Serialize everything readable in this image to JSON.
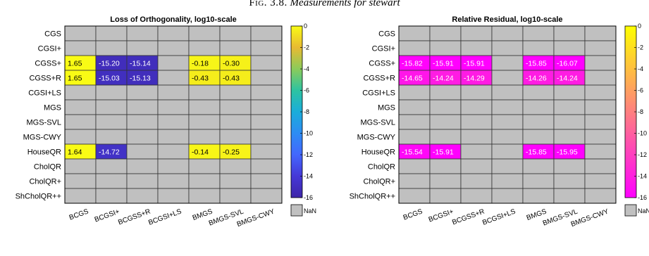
{
  "caption": {
    "label": "Fig. 3.8.",
    "text": "Measurements for stewart"
  },
  "nan_label": "NaN",
  "chart_data": [
    {
      "type": "heatmap",
      "title": "Loss of Orthogonality, log10-scale",
      "rows": [
        "CGS",
        "CGSI+",
        "CGSS+",
        "CGSS+R",
        "CGSI+LS",
        "MGS",
        "MGS-SVL",
        "MGS-CWY",
        "HouseQR",
        "CholQR",
        "CholQR+",
        "ShCholQR++"
      ],
      "columns": [
        "BCGS",
        "BCGSI+",
        "BCGSS+R",
        "BCGSI+LS",
        "BMGS",
        "BMGS-SVL",
        "BMGS-CWY"
      ],
      "values": [
        [
          null,
          null,
          null,
          null,
          null,
          null,
          null
        ],
        [
          null,
          null,
          null,
          null,
          null,
          null,
          null
        ],
        [
          1.65,
          -15.2,
          -15.14,
          null,
          -0.18,
          -0.3,
          null
        ],
        [
          1.65,
          -15.03,
          -15.13,
          null,
          -0.43,
          -0.43,
          null
        ],
        [
          null,
          null,
          null,
          null,
          null,
          null,
          null
        ],
        [
          null,
          null,
          null,
          null,
          null,
          null,
          null
        ],
        [
          null,
          null,
          null,
          null,
          null,
          null,
          null
        ],
        [
          null,
          null,
          null,
          null,
          null,
          null,
          null
        ],
        [
          1.64,
          -14.72,
          null,
          null,
          -0.14,
          -0.25,
          null
        ],
        [
          null,
          null,
          null,
          null,
          null,
          null,
          null
        ],
        [
          null,
          null,
          null,
          null,
          null,
          null,
          null
        ],
        [
          null,
          null,
          null,
          null,
          null,
          null,
          null
        ]
      ],
      "labels": [
        [
          null,
          null,
          null,
          null,
          null,
          null,
          null
        ],
        [
          null,
          null,
          null,
          null,
          null,
          null,
          null
        ],
        [
          "1.65",
          "-15.20",
          "-15.14",
          null,
          "-0.18",
          "-0.30",
          null
        ],
        [
          "1.65",
          "-15.03",
          "-15.13",
          null,
          "-0.43",
          "-0.43",
          null
        ],
        [
          null,
          null,
          null,
          null,
          null,
          null,
          null
        ],
        [
          null,
          null,
          null,
          null,
          null,
          null,
          null
        ],
        [
          null,
          null,
          null,
          null,
          null,
          null,
          null
        ],
        [
          null,
          null,
          null,
          null,
          null,
          null,
          null
        ],
        [
          "1.64",
          "-14.72",
          null,
          null,
          "-0.14",
          "-0.25",
          null
        ],
        [
          null,
          null,
          null,
          null,
          null,
          null,
          null
        ],
        [
          null,
          null,
          null,
          null,
          null,
          null,
          null
        ],
        [
          null,
          null,
          null,
          null,
          null,
          null,
          null
        ]
      ],
      "colorbar": {
        "range": [
          -16,
          0
        ],
        "ticks": [
          "0",
          "-2",
          "-4",
          "-6",
          "-8",
          "-10",
          "-12",
          "-14",
          "-16"
        ],
        "colormap": "parula",
        "nan_color": "#c0c0c0"
      }
    },
    {
      "type": "heatmap",
      "title": "Relative Residual, log10-scale",
      "rows": [
        "CGS",
        "CGSI+",
        "CGSS+",
        "CGSS+R",
        "CGSI+LS",
        "MGS",
        "MGS-SVL",
        "MGS-CWY",
        "HouseQR",
        "CholQR",
        "CholQR+",
        "ShCholQR++"
      ],
      "columns": [
        "BCGS",
        "BCGSI+",
        "BCGSS+R",
        "BCGSI+LS",
        "BMGS",
        "BMGS-SVL",
        "BMGS-CWY"
      ],
      "values": [
        [
          null,
          null,
          null,
          null,
          null,
          null,
          null
        ],
        [
          null,
          null,
          null,
          null,
          null,
          null,
          null
        ],
        [
          -15.82,
          -15.91,
          -15.91,
          null,
          -15.85,
          -16.07,
          null
        ],
        [
          -14.65,
          -14.24,
          -14.29,
          null,
          -14.26,
          -14.24,
          null
        ],
        [
          null,
          null,
          null,
          null,
          null,
          null,
          null
        ],
        [
          null,
          null,
          null,
          null,
          null,
          null,
          null
        ],
        [
          null,
          null,
          null,
          null,
          null,
          null,
          null
        ],
        [
          null,
          null,
          null,
          null,
          null,
          null,
          null
        ],
        [
          -15.54,
          -15.91,
          null,
          null,
          -15.85,
          -15.95,
          null
        ],
        [
          null,
          null,
          null,
          null,
          null,
          null,
          null
        ],
        [
          null,
          null,
          null,
          null,
          null,
          null,
          null
        ],
        [
          null,
          null,
          null,
          null,
          null,
          null,
          null
        ]
      ],
      "labels": [
        [
          null,
          null,
          null,
          null,
          null,
          null,
          null
        ],
        [
          null,
          null,
          null,
          null,
          null,
          null,
          null
        ],
        [
          "-15.82",
          "-15.91",
          "-15.91",
          null,
          "-15.85",
          "-16.07",
          null
        ],
        [
          "-14.65",
          "-14.24",
          "-14.29",
          null,
          "-14.26",
          "-14.24",
          null
        ],
        [
          null,
          null,
          null,
          null,
          null,
          null,
          null
        ],
        [
          null,
          null,
          null,
          null,
          null,
          null,
          null
        ],
        [
          null,
          null,
          null,
          null,
          null,
          null,
          null
        ],
        [
          null,
          null,
          null,
          null,
          null,
          null,
          null
        ],
        [
          "-15.54",
          "-15.91",
          null,
          null,
          "-15.85",
          "-15.95",
          null
        ],
        [
          null,
          null,
          null,
          null,
          null,
          null,
          null
        ],
        [
          null,
          null,
          null,
          null,
          null,
          null,
          null
        ],
        [
          null,
          null,
          null,
          null,
          null,
          null,
          null
        ]
      ],
      "colorbar": {
        "range": [
          -16,
          0
        ],
        "ticks": [
          "0",
          "-2",
          "-4",
          "-6",
          "-8",
          "-10",
          "-12",
          "-14",
          "-16"
        ],
        "colormap": "spring",
        "nan_color": "#c0c0c0"
      }
    }
  ]
}
